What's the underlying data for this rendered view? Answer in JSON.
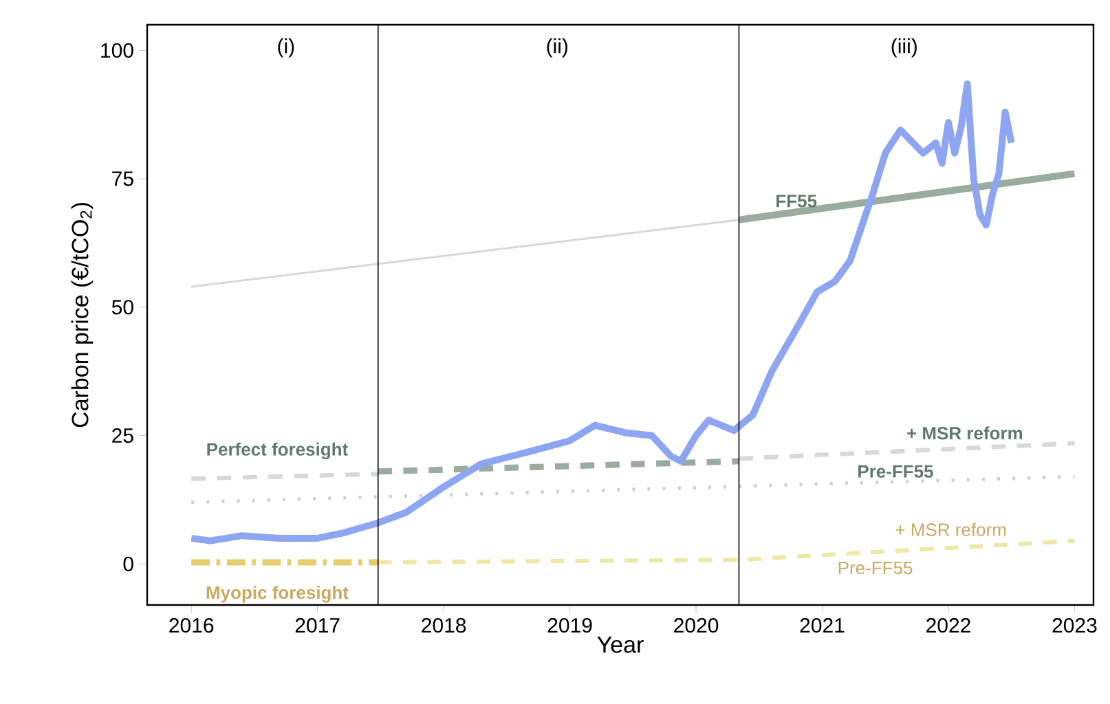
{
  "chart_data": {
    "type": "line",
    "xlabel": "Year",
    "ylabel": "Carbon price (€/tCO$_{2}$)",
    "xlim": [
      2015.65,
      2023.15
    ],
    "ylim": [
      -8,
      105
    ],
    "xticks": [
      2016,
      2017,
      2018,
      2019,
      2020,
      2021,
      2022,
      2023
    ],
    "yticks": [
      0,
      25,
      50,
      75,
      100
    ],
    "grid": false,
    "series": [
      {
        "color": "#d8d8d8",
        "line_style": "solid",
        "x": [
          2016,
          2020.34
        ],
        "values": [
          54,
          67
        ]
      },
      {
        "name": "FF55",
        "color": "#9aab9f",
        "line_style": "solid",
        "x": [
          2020.34,
          2023
        ],
        "values": [
          67,
          76
        ]
      },
      {
        "color": "#d8d8d8",
        "line_style": "dashed",
        "x": [
          2016,
          2017.48
        ],
        "values": [
          16.6,
          17.5
        ]
      },
      {
        "color": "#9aab9f",
        "line_style": "dashed",
        "x": [
          2017.48,
          2020.34
        ],
        "values": [
          18,
          20
        ]
      },
      {
        "color": "#d8d8d8",
        "line_style": "dashed",
        "x": [
          2020.34,
          2023
        ],
        "values": [
          20.5,
          23.5
        ]
      },
      {
        "color": "#d0d0d0",
        "line_style": "dotted",
        "x": [
          2016,
          2023
        ],
        "values": [
          12,
          17
        ]
      },
      {
        "color": "#e6cd6e",
        "line_style": "dashdotted",
        "x": [
          2016,
          2017.48
        ],
        "values": [
          0.3,
          0.3
        ]
      },
      {
        "color": "#efe7a6",
        "line_style": "dashed",
        "x": [
          2017.48,
          2020.34,
          2023
        ],
        "values": [
          0.3,
          0.8,
          4.5
        ]
      },
      {
        "color": "#8ea6f2",
        "line_style": "solid",
        "x": [
          2016,
          2016.15,
          2016.4,
          2016.7,
          2017.0,
          2017.2,
          2017.48,
          2017.7,
          2018.0,
          2018.3,
          2018.7,
          2019.0,
          2019.2,
          2019.45,
          2019.65,
          2019.8,
          2019.88,
          2020.0,
          2020.1,
          2020.3,
          2020.45,
          2020.6,
          2020.8,
          2020.96,
          2021.1,
          2021.22,
          2021.4,
          2021.5,
          2021.62,
          2021.8,
          2021.9,
          2021.95,
          2022.0,
          2022.05,
          2022.1,
          2022.15,
          2022.2,
          2022.25,
          2022.3,
          2022.35,
          2022.4,
          2022.45,
          2022.5
        ],
        "values": [
          5,
          4.5,
          5.5,
          5,
          5,
          6,
          8,
          10,
          15,
          19.5,
          22,
          24,
          27,
          25.5,
          25,
          21,
          20,
          25,
          28,
          26,
          29,
          37.5,
          46,
          53,
          55,
          59,
          72,
          80,
          84.5,
          80,
          82,
          78,
          86,
          80,
          85,
          93.5,
          75,
          68,
          66,
          72,
          76,
          88,
          82
        ]
      }
    ],
    "ref_lines": [
      {
        "axis": "x",
        "value": 2017.48
      },
      {
        "axis": "x",
        "value": 2020.34
      }
    ],
    "annotations": [
      "Perfect foresight",
      "+ MSR reform",
      "Pre-FF55",
      "+ MSR reform",
      "Pre-FF55",
      "Myopic foresight",
      "(i)",
      "(ii)",
      "(iii)"
    ]
  }
}
